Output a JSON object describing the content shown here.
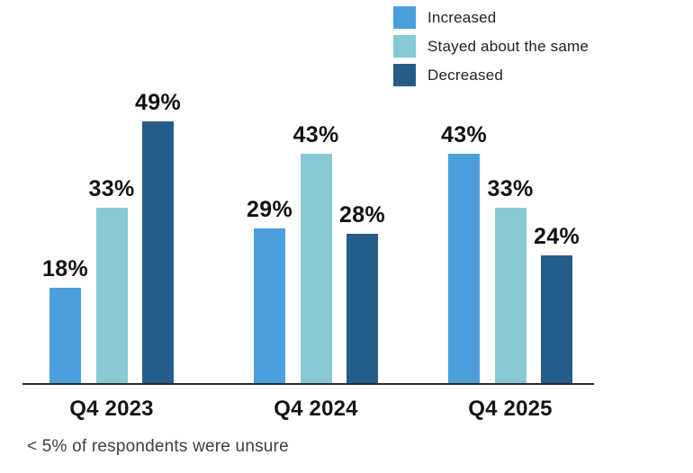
{
  "chart_data": {
    "type": "bar",
    "title": "",
    "categories": [
      "Q4 2023",
      "Q4 2024",
      "Q4 2025"
    ],
    "series": [
      {
        "name": "Increased",
        "color": "#4BA0DC",
        "values": [
          18,
          29,
          43
        ]
      },
      {
        "name": "Stayed about the same",
        "color": "#87CAD3",
        "values": [
          33,
          43,
          33
        ]
      },
      {
        "name": "Decreased",
        "color": "#265C88",
        "values": [
          49,
          28,
          24
        ]
      }
    ],
    "value_suffix": "%",
    "ylim": [
      0,
      55
    ],
    "grid": false,
    "legend_position": "top-right",
    "axis_color": "#2b2b2b",
    "footnote": "< 5% of respondents were unsure"
  }
}
